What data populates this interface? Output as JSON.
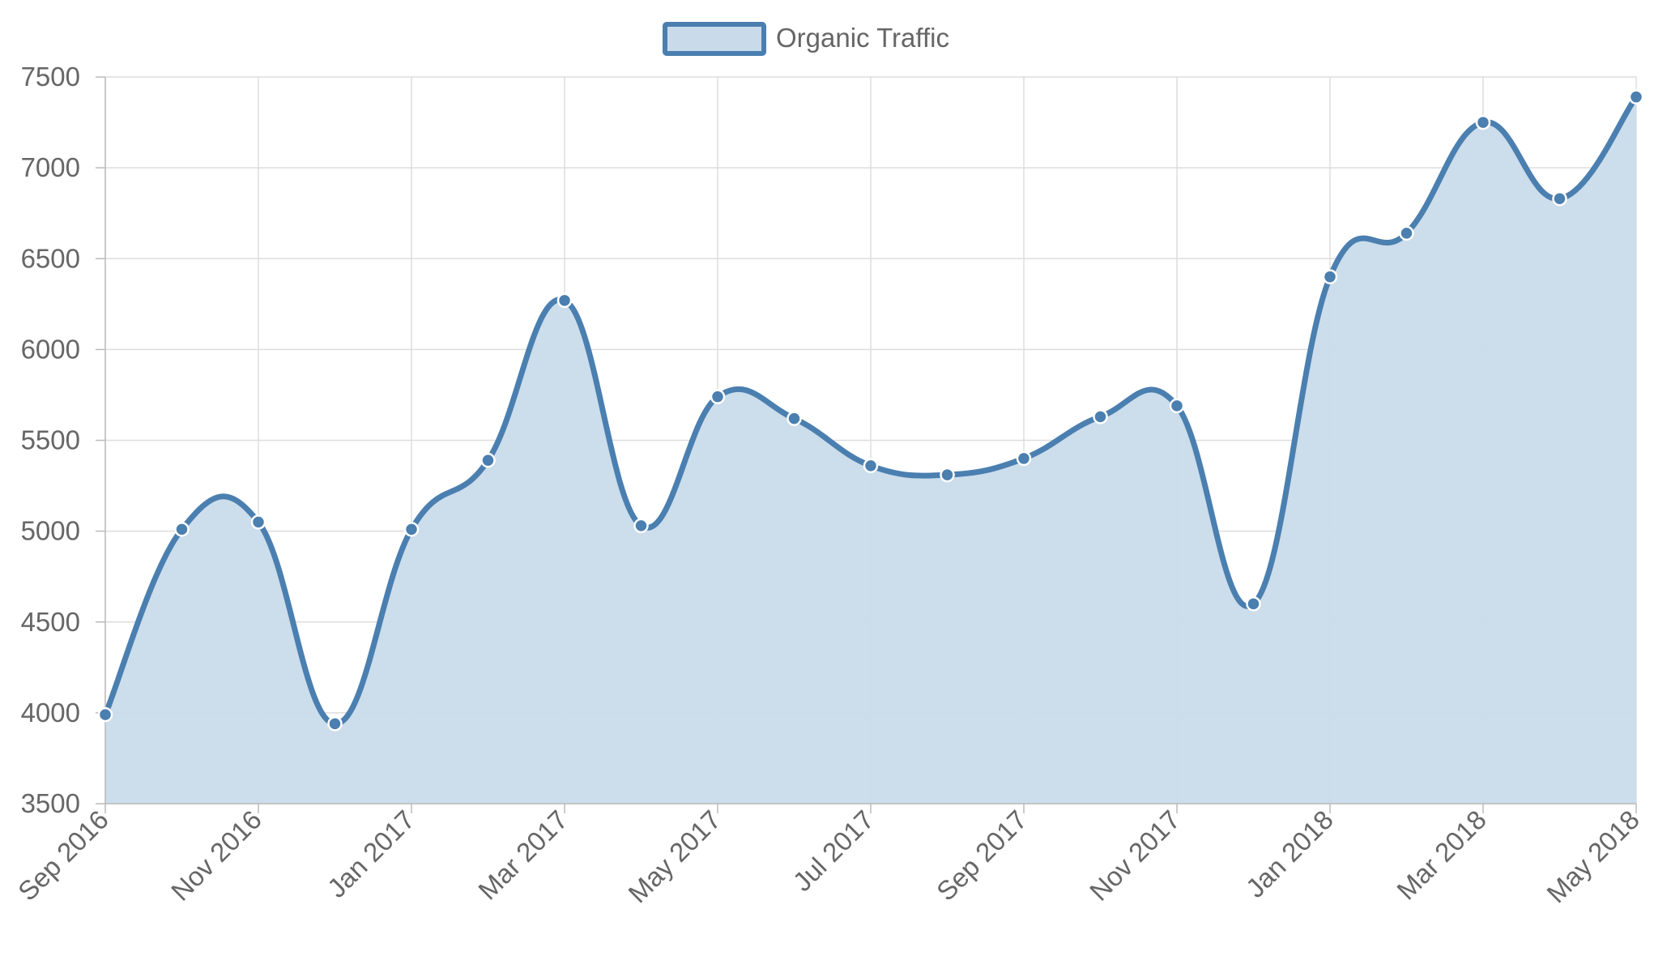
{
  "chart_data": {
    "type": "area",
    "legend": {
      "label": "Organic Traffic",
      "placement": "top-center"
    },
    "series": [
      {
        "name": "Organic Traffic",
        "x": [
          "Sep 2016",
          "Oct 2016",
          "Nov 2016",
          "Dec 2016",
          "Jan 2017",
          "Feb 2017",
          "Mar 2017",
          "Apr 2017",
          "May 2017",
          "Jun 2017",
          "Jul 2017",
          "Aug 2017",
          "Sep 2017",
          "Oct 2017",
          "Nov 2017",
          "Dec 2017",
          "Jan 2018",
          "Feb 2018",
          "Mar 2018",
          "Apr 2018",
          "May 2018"
        ],
        "values": [
          3990,
          5010,
          5050,
          3940,
          5010,
          5390,
          6270,
          5030,
          5740,
          5620,
          5360,
          5310,
          5400,
          5630,
          5690,
          4600,
          6400,
          6640,
          7250,
          6830,
          7390
        ]
      }
    ],
    "x_tick_labels": [
      "Sep 2016",
      "Nov 2016",
      "Jan 2017",
      "Mar 2017",
      "May 2017",
      "Jul 2017",
      "Sep 2017",
      "Nov 2017",
      "Jan 2018",
      "Mar 2018",
      "May 2018"
    ],
    "y_tick_labels": [
      "7500",
      "7000",
      "6500",
      "6000",
      "5500",
      "5000",
      "4500",
      "4000",
      "3500"
    ],
    "ylim": [
      3500,
      7500
    ],
    "grid": true,
    "colors": {
      "line": "#4a7fb0",
      "fill": "#c9dbea",
      "grid": "#dddddd",
      "axis": "#bbbbbb",
      "tick_text": "#666666",
      "point_border": "#ffffff"
    }
  }
}
